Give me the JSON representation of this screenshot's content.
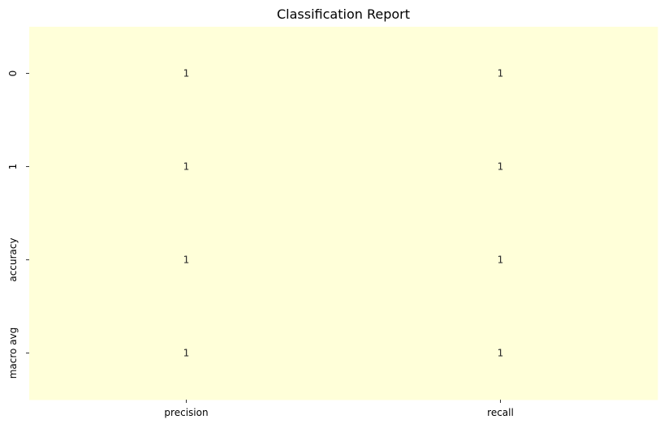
{
  "chart_data": {
    "type": "heatmap",
    "title": "Classification Report",
    "xlabel": "",
    "ylabel": "",
    "columns": [
      "precision",
      "recall"
    ],
    "rows": [
      "0",
      "1",
      "accuracy",
      "macro avg"
    ],
    "values": [
      [
        1,
        1
      ],
      [
        1,
        1
      ],
      [
        1,
        1
      ],
      [
        1,
        1
      ]
    ],
    "cell_labels": [
      [
        "1",
        "1"
      ],
      [
        "1",
        "1"
      ],
      [
        "1",
        "1"
      ],
      [
        "1",
        "1"
      ]
    ],
    "colormap": "YlGnBu",
    "cell_color": "#ffffd9",
    "colorbar": false,
    "grid": false
  }
}
